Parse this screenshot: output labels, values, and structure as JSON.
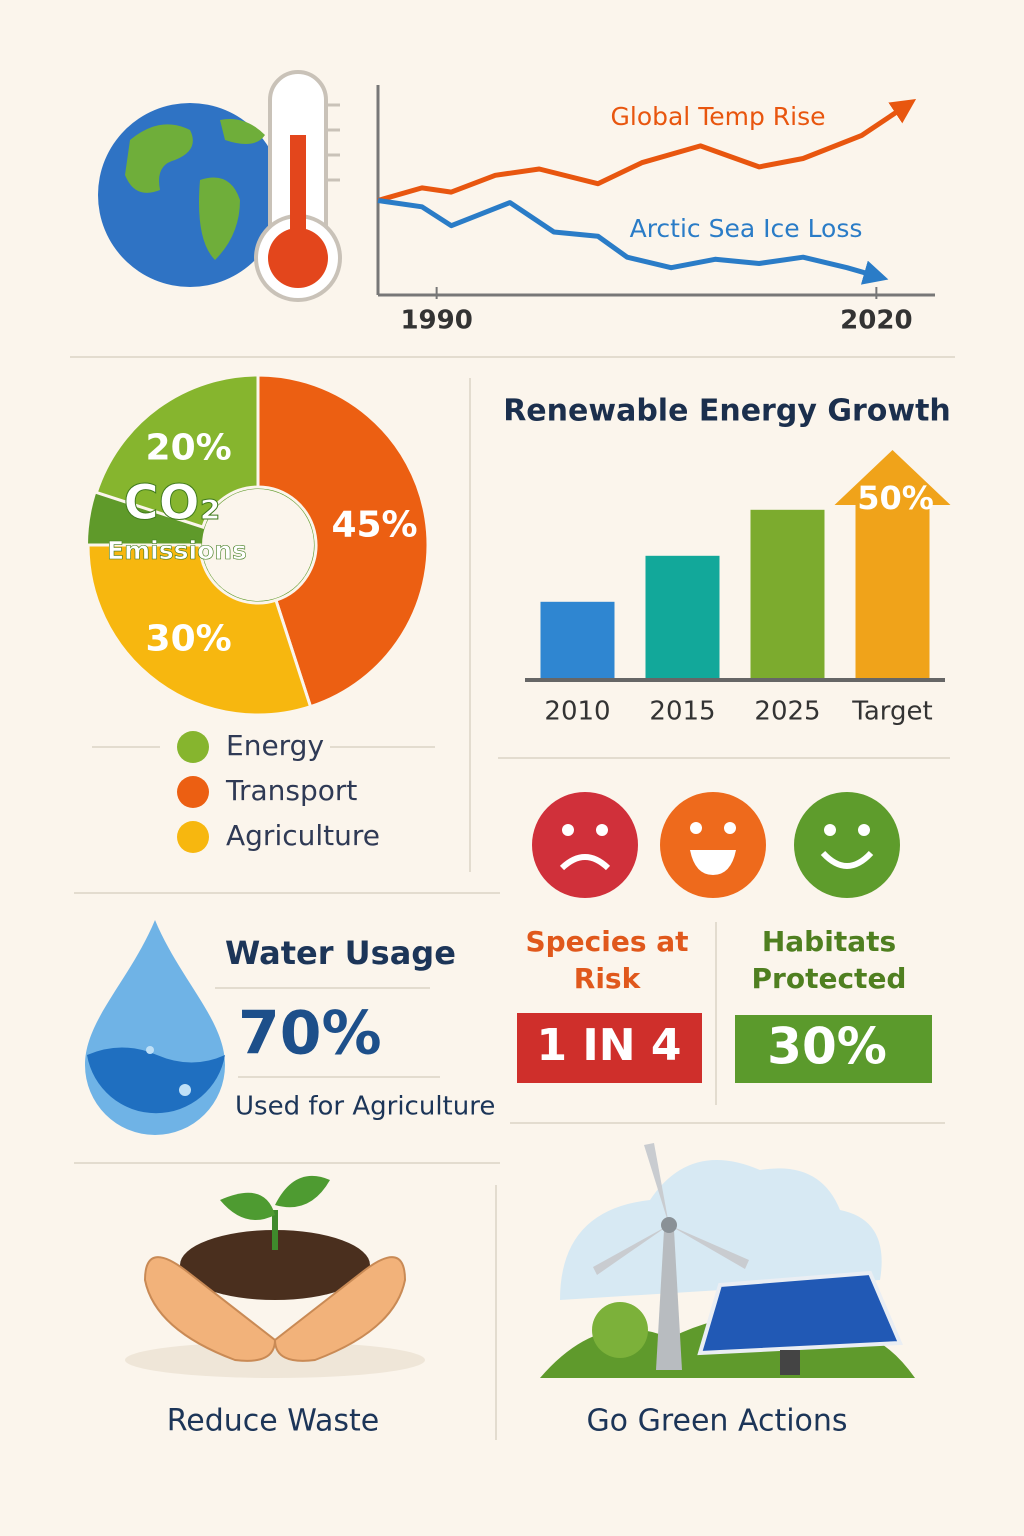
{
  "chart_data": [
    {
      "type": "line",
      "xlim": [
        1986,
        2024
      ],
      "xticks": [
        1990,
        2020
      ],
      "ylim": [
        0,
        10
      ],
      "series": [
        {
          "name": "Global Temp Rise",
          "color": "#e8560f",
          "x": [
            1986,
            1989,
            1991,
            1994,
            1997,
            2001,
            2004,
            2008,
            2012,
            2015,
            2019,
            2022
          ],
          "values": [
            4.5,
            5.1,
            4.9,
            5.7,
            6.0,
            5.3,
            6.3,
            7.1,
            6.1,
            6.5,
            7.6,
            9.0
          ]
        },
        {
          "name": "Arctic Sea Ice Loss",
          "color": "#2a7cc7",
          "x": [
            1986,
            1989,
            1991,
            1995,
            1998,
            2001,
            2003,
            2006,
            2009,
            2012,
            2015,
            2018,
            2020
          ],
          "values": [
            4.5,
            4.2,
            3.3,
            4.4,
            3.0,
            2.8,
            1.8,
            1.3,
            1.7,
            1.5,
            1.8,
            1.3,
            0.9
          ]
        }
      ]
    },
    {
      "type": "donut",
      "title": "CO₂",
      "subtitle": "Emissions",
      "categories": [
        "Energy",
        "Transport",
        "Agriculture"
      ],
      "values": [
        20,
        45,
        30
      ],
      "value_labels": [
        "20%",
        "45%",
        "30%"
      ],
      "colors": [
        "#86b52e",
        "#ec5f12",
        "#f7b70f"
      ]
    },
    {
      "type": "bar",
      "title": "Renewable Energy Growth",
      "categories": [
        "2010",
        "2015",
        "2025",
        "Target"
      ],
      "values": [
        17,
        27,
        37,
        50
      ],
      "value_labels": [
        null,
        null,
        null,
        "50%"
      ],
      "colors": [
        "#2f86d1",
        "#12a89a",
        "#7cab2e",
        "#f0a31a"
      ],
      "ylim": [
        0,
        50
      ]
    }
  ],
  "panels": {
    "water": {
      "title": "Water Usage",
      "value": "70%",
      "caption": "Used for Agriculture"
    },
    "species": {
      "title": [
        "Species at",
        "Risk"
      ],
      "value": "1 IN 4"
    },
    "habitats": {
      "title": [
        "Habitats",
        "Protected"
      ],
      "value": "30%"
    },
    "actions": [
      "Reduce Waste",
      "Go Green Actions"
    ]
  }
}
